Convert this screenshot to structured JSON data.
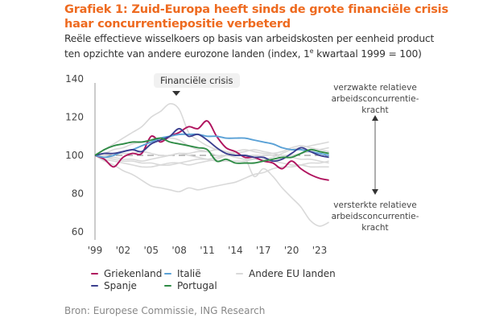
{
  "title": "Grafiek 1: Zuid-Europa heeft sinds de grote financiële crisis haar concurrentiepositie verbeterd",
  "subtitle_line1": "Reële effectieve wisselkoers op basis van arbeidskosten per eenheid product",
  "subtitle_line2_pre": "ten opzichte van andere eurozone landen (index, 1",
  "subtitle_sup": "e",
  "subtitle_line2_post": " kwartaal 1999 = 100)",
  "annotation_crisis": "Financiële crisis",
  "annotation_top": [
    "verzwakte relatieve",
    "arbeidsconcurrentie-",
    "kracht"
  ],
  "annotation_bottom": [
    "versterkte relatieve",
    "arbeidsconcurrentie-",
    "kracht"
  ],
  "source": "Bron: Europese Commissie, ING Research",
  "legend": [
    {
      "label": "Griekenland",
      "color": "#b0135e"
    },
    {
      "label": "Italië",
      "color": "#5aa1d6"
    },
    {
      "label": "Andere EU landen",
      "color": "#d9d9d9"
    },
    {
      "label": "Spanje",
      "color": "#3b3f8f"
    },
    {
      "label": "Portugal",
      "color": "#2e8b45"
    }
  ],
  "chart_data": {
    "type": "line",
    "title": "Grafiek 1: Zuid-Europa heeft sinds de grote financiële crisis haar concurrentiepositie verbeterd",
    "xlabel": "",
    "ylabel": "index, 1e kwartaal 1999 = 100",
    "x": [
      1999,
      2000,
      2001,
      2002,
      2003,
      2004,
      2005,
      2006,
      2007,
      2008,
      2009,
      2010,
      2011,
      2012,
      2013,
      2014,
      2015,
      2016,
      2017,
      2018,
      2019,
      2020,
      2021,
      2022,
      2023,
      2024
    ],
    "x_tick_labels": [
      "'99",
      "'02",
      "'05",
      "'08",
      "'11",
      "'14",
      "'17",
      "'20",
      "'23"
    ],
    "x_ticks": [
      1999,
      2002,
      2005,
      2008,
      2011,
      2014,
      2017,
      2020,
      2023
    ],
    "ylim": [
      60,
      140
    ],
    "y_ticks": [
      60,
      80,
      100,
      120,
      140
    ],
    "reference_line": 100,
    "grid": false,
    "legend_position": "bottom",
    "series": [
      {
        "name": "Griekenland",
        "color": "#b0135e",
        "values": [
          100,
          98,
          94,
          99,
          101,
          101,
          110,
          107,
          110,
          112,
          115,
          114,
          118,
          110,
          104,
          102,
          99,
          99,
          97,
          96,
          93,
          97,
          93,
          90,
          88,
          87
        ]
      },
      {
        "name": "Italië",
        "color": "#5aa1d6",
        "values": [
          100,
          99,
          100,
          102,
          103,
          105,
          107,
          109,
          110,
          111,
          111,
          111,
          110,
          110,
          109,
          109,
          109,
          108,
          107,
          106,
          104,
          103,
          103,
          102,
          101,
          100
        ]
      },
      {
        "name": "Spanje",
        "color": "#3b3f8f",
        "values": [
          100,
          101,
          101,
          102,
          103,
          102,
          106,
          108,
          110,
          114,
          110,
          111,
          108,
          104,
          101,
          100,
          100,
          99,
          99,
          97,
          98,
          101,
          104,
          102,
          100,
          99
        ]
      },
      {
        "name": "Portugal",
        "color": "#2e8b45",
        "values": [
          100,
          103,
          105,
          106,
          107,
          107,
          108,
          109,
          107,
          106,
          105,
          104,
          103,
          97,
          98,
          96,
          96,
          96,
          97,
          98,
          99,
          99,
          101,
          103,
          102,
          101
        ]
      },
      {
        "name": "Andere EU landen 1",
        "color": "#d9d9d9",
        "values": [
          100,
          103,
          106,
          109,
          112,
          115,
          120,
          123,
          127,
          124,
          112,
          108,
          105,
          103,
          102,
          100,
          99,
          89,
          93,
          89,
          83,
          78,
          73,
          66,
          63,
          65
        ]
      },
      {
        "name": "Andere EU landen 2",
        "color": "#d9d9d9",
        "values": [
          100,
          97,
          95,
          92,
          90,
          87,
          84,
          83,
          82,
          81,
          83,
          82,
          83,
          84,
          85,
          86,
          88,
          90,
          91,
          93,
          94,
          94,
          95,
          96,
          96,
          97
        ]
      },
      {
        "name": "Andere EU landen 3",
        "color": "#d9d9d9",
        "values": [
          100,
          99,
          98,
          97,
          97,
          96,
          96,
          95,
          95,
          96,
          97,
          98,
          98,
          99,
          100,
          99,
          98,
          98,
          98,
          99,
          101,
          103,
          104,
          105,
          106,
          107
        ]
      },
      {
        "name": "Andere EU landen 4",
        "color": "#d9d9d9",
        "values": [
          100,
          100,
          101,
          101,
          101,
          102,
          101,
          100,
          100,
          101,
          101,
          102,
          102,
          103,
          102,
          101,
          100,
          100,
          100,
          100,
          99,
          99,
          98,
          98,
          97,
          96
        ]
      },
      {
        "name": "Andere EU landen 5",
        "color": "#d9d9d9",
        "values": [
          100,
          98,
          97,
          96,
          95,
          94,
          94,
          95,
          96,
          96,
          95,
          96,
          97,
          98,
          100,
          102,
          103,
          102,
          101,
          101,
          102,
          104,
          105,
          104,
          103,
          102
        ]
      },
      {
        "name": "Andere EU landen 6",
        "color": "#d9d9d9",
        "values": [
          100,
          101,
          103,
          104,
          106,
          107,
          107,
          108,
          109,
          108,
          105,
          103,
          102,
          100,
          100,
          101,
          102,
          103,
          102,
          101,
          100,
          100,
          101,
          102,
          103,
          104
        ]
      },
      {
        "name": "Andere EU landen 7",
        "color": "#d9d9d9",
        "values": [
          100,
          99,
          99,
          98,
          98,
          97,
          98,
          99,
          100,
          101,
          100,
          99,
          98,
          97,
          97,
          97,
          97,
          98,
          98,
          97,
          96,
          95,
          95,
          94,
          94,
          94
        ]
      }
    ]
  }
}
